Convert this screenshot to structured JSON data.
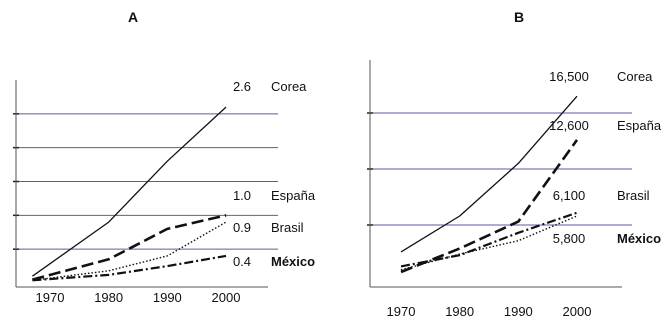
{
  "chart_data": [
    {
      "panel": "A",
      "title": "A",
      "type": "line",
      "x": [
        1970,
        1980,
        1990,
        2000
      ],
      "x_tick_labels": [
        "1970",
        "1980",
        "1990",
        "2000"
      ],
      "ylim": [
        0,
        3.0
      ],
      "gridlines_y": [
        0.5,
        1.0,
        1.5,
        2.0,
        2.5
      ],
      "grid": true,
      "series": [
        {
          "name": "Corea",
          "end_label": "2.6",
          "style": "solid-thin",
          "x": [
            1967,
            1980,
            1990,
            2000
          ],
          "values": [
            0.1,
            0.9,
            1.8,
            2.6
          ]
        },
        {
          "name": "España",
          "end_label": "1.0",
          "style": "long-dash",
          "x": [
            1967,
            1980,
            1990,
            2000
          ],
          "values": [
            0.05,
            0.35,
            0.8,
            1.0
          ]
        },
        {
          "name": "Brasil",
          "end_label": "0.9",
          "style": "dotted",
          "x": [
            1967,
            1980,
            1990,
            2000
          ],
          "values": [
            0.04,
            0.18,
            0.4,
            0.9
          ]
        },
        {
          "name": "México",
          "end_label": "0.4",
          "style": "dash-dot",
          "bold_label": true,
          "x": [
            1967,
            1980,
            1990,
            2000
          ],
          "values": [
            0.04,
            0.12,
            0.25,
            0.4
          ]
        }
      ]
    },
    {
      "panel": "B",
      "title": "B",
      "type": "line",
      "x": [
        1970,
        1980,
        1990,
        2000
      ],
      "x_tick_labels": [
        "1970",
        "1980",
        "1990",
        "2000"
      ],
      "ylim": [
        0,
        20000
      ],
      "gridlines_y": [
        5000,
        10000,
        15000
      ],
      "grid": true,
      "series": [
        {
          "name": "Corea",
          "end_label": "16,500",
          "style": "solid-thin",
          "x": [
            1970,
            1980,
            1990,
            2000
          ],
          "values": [
            2600,
            5800,
            10500,
            16500
          ]
        },
        {
          "name": "España",
          "end_label": "12,600",
          "style": "long-dash",
          "x": [
            1970,
            1980,
            1990,
            2000
          ],
          "values": [
            800,
            2900,
            5300,
            12600
          ]
        },
        {
          "name": "Brasil",
          "end_label": "6,100",
          "style": "dash-dot",
          "x": [
            1970,
            1980,
            1990,
            2000
          ],
          "values": [
            1300,
            2300,
            4300,
            6100
          ]
        },
        {
          "name": "México",
          "end_label": "5,800",
          "style": "dotted",
          "bold_label": true,
          "x": [
            1970,
            1980,
            1990,
            2000
          ],
          "values": [
            1000,
            2400,
            3600,
            5800
          ]
        }
      ]
    }
  ]
}
